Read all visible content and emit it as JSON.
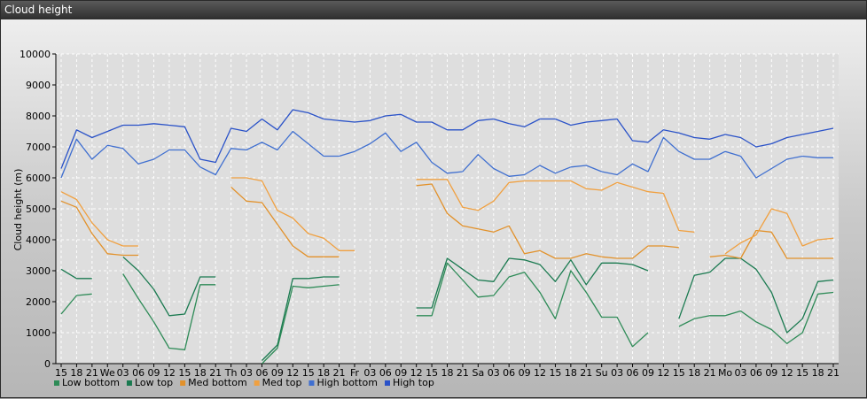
{
  "window": {
    "title": "Cloud height"
  },
  "chart_data": {
    "type": "line",
    "title": "Cloud height",
    "ylabel": "Cloud height (m)",
    "xlabel": "",
    "ylim": [
      0,
      10000
    ],
    "yticks": [
      0,
      1000,
      2000,
      3000,
      4000,
      5000,
      6000,
      7000,
      8000,
      9000,
      10000
    ],
    "grid": true,
    "legend_position": "bottom-left",
    "categories": [
      "15",
      "18",
      "21",
      "We",
      "03",
      "06",
      "09",
      "12",
      "15",
      "18",
      "21",
      "Th",
      "03",
      "06",
      "09",
      "12",
      "15",
      "18",
      "21",
      "Fr",
      "03",
      "06",
      "09",
      "12",
      "15",
      "18",
      "21",
      "Sa",
      "03",
      "06",
      "09",
      "12",
      "15",
      "18",
      "21",
      "Su",
      "03",
      "06",
      "09",
      "12",
      "15",
      "18",
      "21",
      "Mo",
      "03",
      "06",
      "09",
      "12",
      "15",
      "18",
      "21"
    ],
    "series": [
      {
        "name": "Low bottom",
        "color": "#2e8b57",
        "values": [
          1600,
          2200,
          2250,
          null,
          2900,
          2100,
          1350,
          500,
          450,
          2550,
          2550,
          null,
          null,
          0,
          500,
          2500,
          2450,
          2500,
          2550,
          null,
          null,
          null,
          null,
          1550,
          1550,
          3250,
          2700,
          2150,
          2200,
          2800,
          2950,
          2300,
          1450,
          3000,
          2300,
          1500,
          1500,
          550,
          1000,
          null,
          1200,
          1450,
          1550,
          1550,
          1700,
          1350,
          1100,
          650,
          1000,
          2250,
          2300
        ]
      },
      {
        "name": "Low top",
        "color": "#1a7a50",
        "values": [
          3050,
          2750,
          2750,
          null,
          3450,
          3000,
          2400,
          1550,
          1600,
          2800,
          2800,
          null,
          null,
          100,
          600,
          2750,
          2750,
          2800,
          2800,
          null,
          null,
          null,
          null,
          1800,
          1800,
          3400,
          3050,
          2700,
          2650,
          3400,
          3350,
          3200,
          2650,
          3350,
          2550,
          3250,
          3250,
          3200,
          3000,
          null,
          1450,
          2850,
          2950,
          3400,
          3400,
          3050,
          2300,
          1000,
          1450,
          2650,
          2700
        ]
      },
      {
        "name": "Med bottom",
        "color": "#e2912a",
        "values": [
          5250,
          5050,
          4200,
          3550,
          3500,
          3500,
          null,
          null,
          null,
          null,
          null,
          5700,
          5250,
          5200,
          4500,
          3800,
          3450,
          3450,
          3450,
          null,
          null,
          null,
          null,
          5750,
          5800,
          4850,
          4450,
          4350,
          4250,
          4450,
          3550,
          3650,
          3400,
          3400,
          3550,
          3450,
          3400,
          3400,
          3800,
          3800,
          3750,
          null,
          3450,
          3500,
          3400,
          4300,
          4250,
          3400,
          3400,
          3400,
          3400
        ]
      },
      {
        "name": "Med top",
        "color": "#f0a040",
        "values": [
          5550,
          5300,
          4550,
          4000,
          3800,
          3800,
          null,
          null,
          null,
          null,
          null,
          6000,
          6000,
          5900,
          4950,
          4700,
          4200,
          4050,
          3650,
          3650,
          null,
          null,
          null,
          5950,
          5950,
          5950,
          5050,
          4950,
          5250,
          5850,
          5900,
          5900,
          5900,
          5900,
          5650,
          5600,
          5850,
          5700,
          5550,
          5500,
          4300,
          4250,
          null,
          3550,
          3900,
          4150,
          5000,
          4850,
          3800,
          4000,
          4050
        ]
      },
      {
        "name": "High bottom",
        "color": "#3f6fd0",
        "values": [
          6000,
          7250,
          6600,
          7050,
          6950,
          6450,
          6600,
          6900,
          6900,
          6350,
          6100,
          6950,
          6900,
          7150,
          6900,
          7500,
          7100,
          6700,
          6700,
          6850,
          7100,
          7450,
          6850,
          7150,
          6500,
          6150,
          6200,
          6750,
          6300,
          6050,
          6100,
          6400,
          6150,
          6350,
          6400,
          6200,
          6100,
          6450,
          6200,
          7300,
          6850,
          6600,
          6600,
          6850,
          6700,
          6000,
          6300,
          6600,
          6700,
          6650,
          6650
        ]
      },
      {
        "name": "High top",
        "color": "#2a52c8",
        "values": [
          6300,
          7550,
          7300,
          7500,
          7700,
          7700,
          7750,
          7700,
          7650,
          6600,
          6500,
          7600,
          7500,
          7900,
          7550,
          8200,
          8100,
          7900,
          7850,
          7800,
          7850,
          8000,
          8050,
          7800,
          7800,
          7550,
          7550,
          7850,
          7900,
          7750,
          7650,
          7900,
          7900,
          7700,
          7800,
          7850,
          7900,
          7200,
          7150,
          7550,
          7450,
          7300,
          7250,
          7400,
          7300,
          7000,
          7100,
          7300,
          7400,
          7500,
          7600
        ]
      }
    ]
  }
}
